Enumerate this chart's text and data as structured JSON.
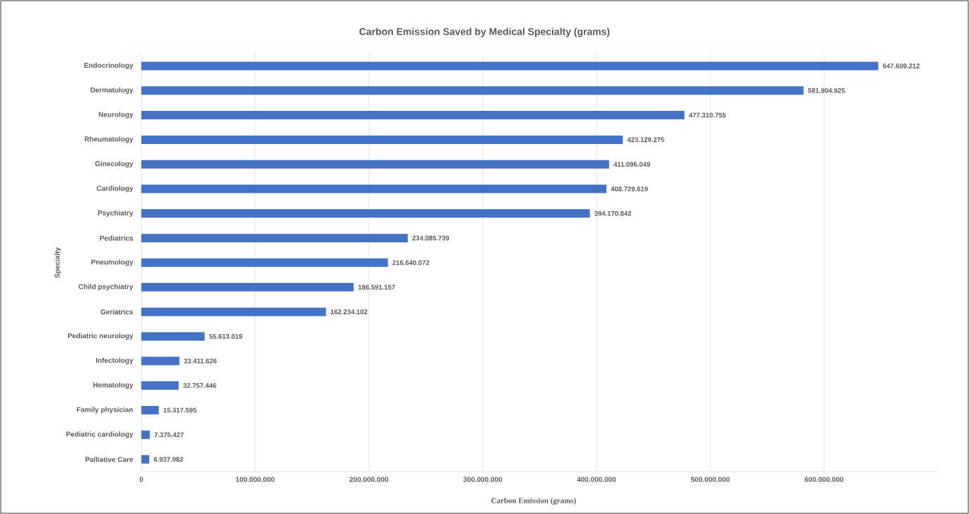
{
  "chart_data": {
    "type": "bar",
    "orientation": "horizontal",
    "title": "Carbon Emission Saved by Medical Specialty (grams)",
    "xlabel": "Carbon Emission (grams)",
    "ylabel": "Specialty",
    "categories": [
      "Endocrinology",
      "Dermatology",
      "Neurology",
      "Rheumatology",
      "Ginecology",
      "Cardiology",
      "Psychiatry",
      "Pediatrics",
      "Pneumology",
      "Child psychiatry",
      "Geriatrics",
      "Pediatric neurology",
      "Infectology",
      "Hematology",
      "Family physician",
      "Pediatric cardiology",
      "Palliative Care"
    ],
    "values": [
      647609212,
      581904925,
      477310755,
      423129275,
      411096049,
      408729619,
      394170842,
      234085739,
      216640072,
      186591157,
      162234102,
      55613019,
      33411626,
      32757446,
      15317595,
      7375427,
      6937982
    ],
    "value_labels": [
      "647.609.212",
      "581.904.925",
      "477.310.755",
      "423.129.275",
      "411.096.049",
      "408.729.619",
      "394.170.842",
      "234.085.739",
      "216.640.072",
      "186.591.157",
      "162.234.102",
      "55.613.019",
      "33.411.626",
      "32.757.446",
      "15.317.595",
      "7.375.427",
      "6.937.982"
    ],
    "color": "#4472c4",
    "xlim": [
      0,
      700000000
    ],
    "xticks": [
      0,
      {
        "value": 100000000,
        "label": "100.000.000"
      },
      {
        "value": 200000000,
        "label": "200.000.000"
      },
      {
        "value": 300000000,
        "label": "300.000.000"
      },
      {
        "value": 400000000,
        "label": "400.000.000"
      },
      {
        "value": 500000000,
        "label": "500.000.000"
      },
      {
        "value": 600000000,
        "label": "600.000.000"
      }
    ],
    "grid": "x"
  }
}
